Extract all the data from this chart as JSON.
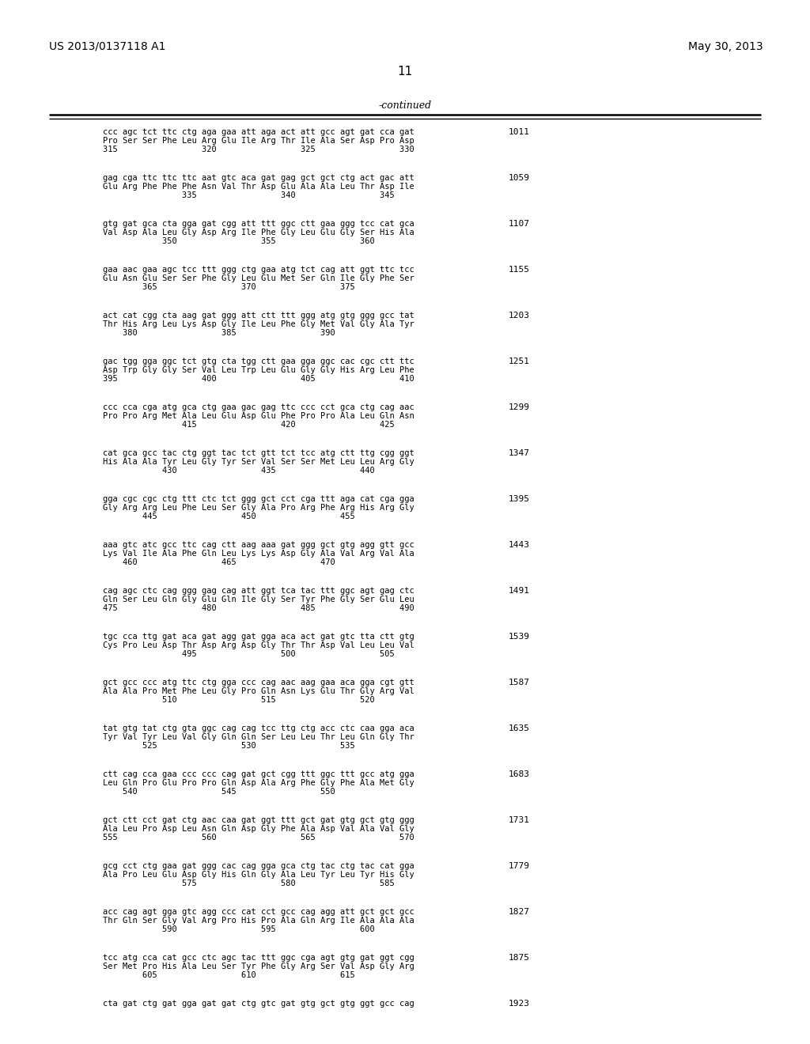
{
  "patent_number": "US 2013/0137118 A1",
  "date": "May 30, 2013",
  "page_number": "11",
  "continued_label": "-continued",
  "background_color": "#ffffff",
  "text_color": "#000000",
  "lines": [
    {
      "dna": "ccc agc tct ttc ctg aga gaa att aga act att gcc agt gat cca gat",
      "aa": "Pro Ser Ser Phe Leu Arg Glu Ile Arg Thr Ile Ala Ser Asp Pro Asp",
      "nums": "315                 320                 325                 330",
      "num_right": "1011"
    },
    {
      "dna": "gag cga ttc ttc ttc aat gtc aca gat gag gct gct ctg act gac att",
      "aa": "Glu Arg Phe Phe Phe Asn Val Thr Asp Glu Ala Ala Leu Thr Asp Ile",
      "nums": "                335                 340                 345",
      "num_right": "1059"
    },
    {
      "dna": "gtg gat gca cta gga gat cgg att ttt ggc ctt gaa ggg tcc cat gca",
      "aa": "Val Asp Ala Leu Gly Asp Arg Ile Phe Gly Leu Glu Gly Ser His Ala",
      "nums": "            350                 355                 360",
      "num_right": "1107"
    },
    {
      "dna": "gaa aac gaa agc tcc ttt ggg ctg gaa atg tct cag att ggt ttc tcc",
      "aa": "Glu Asn Glu Ser Ser Phe Gly Leu Glu Met Ser Gln Ile Gly Phe Ser",
      "nums": "        365                 370                 375",
      "num_right": "1155"
    },
    {
      "dna": "act cat cgg cta aag gat ggg att ctt ttt ggg atg gtg ggg gcc tat",
      "aa": "Thr His Arg Leu Lys Asp Gly Ile Leu Phe Gly Met Val Gly Ala Tyr",
      "nums": "    380                 385                 390",
      "num_right": "1203"
    },
    {
      "dna": "gac tgg gga ggc tct gtg cta tgg ctt gaa gga ggc cac cgc ctt ttc",
      "aa": "Asp Trp Gly Gly Ser Val Leu Trp Leu Glu Gly Gly His Arg Leu Phe",
      "nums": "395                 400                 405                 410",
      "num_right": "1251"
    },
    {
      "dna": "ccc cca cga atg gca ctg gaa gac gag ttc ccc cct gca ctg cag aac",
      "aa": "Pro Pro Arg Met Ala Leu Glu Asp Glu Phe Pro Pro Ala Leu Gln Asn",
      "nums": "                415                 420                 425",
      "num_right": "1299"
    },
    {
      "dna": "cat gca gcc tac ctg ggt tac tct gtt tct tcc atg ctt ttg cgg ggt",
      "aa": "His Ala Ala Tyr Leu Gly Tyr Ser Val Ser Ser Met Leu Leu Arg Gly",
      "nums": "            430                 435                 440",
      "num_right": "1347"
    },
    {
      "dna": "gga cgc cgc ctg ttt ctc tct ggg gct cct cga ttt aga cat cga gga",
      "aa": "Gly Arg Arg Leu Phe Leu Ser Gly Ala Pro Arg Phe Arg His Arg Gly",
      "nums": "        445                 450                 455",
      "num_right": "1395"
    },
    {
      "dna": "aaa gtc atc gcc ttc cag ctt aag aaa gat ggg gct gtg agg gtt gcc",
      "aa": "Lys Val Ile Ala Phe Gln Leu Lys Lys Asp Gly Ala Val Arg Val Ala",
      "nums": "    460                 465                 470",
      "num_right": "1443"
    },
    {
      "dna": "cag agc ctc cag ggg gag cag att ggt tca tac ttt ggc agt gag ctc",
      "aa": "Gln Ser Leu Gln Gly Glu Gln Ile Gly Ser Tyr Phe Gly Ser Glu Leu",
      "nums": "475                 480                 485                 490",
      "num_right": "1491"
    },
    {
      "dna": "tgc cca ttg gat aca gat agg gat gga aca act gat gtc tta ctt gtg",
      "aa": "Cys Pro Leu Asp Thr Asp Arg Asp Gly Thr Thr Asp Val Leu Leu Val",
      "nums": "                495                 500                 505",
      "num_right": "1539"
    },
    {
      "dna": "gct gcc ccc atg ttc ctg gga ccc cag aac aag gaa aca gga cgt gtt",
      "aa": "Ala Ala Pro Met Phe Leu Gly Pro Gln Asn Lys Glu Thr Gly Arg Val",
      "nums": "            510                 515                 520",
      "num_right": "1587"
    },
    {
      "dna": "tat gtg tat ctg gta ggc cag cag tcc ttg ctg acc ctc caa gga aca",
      "aa": "Tyr Val Tyr Leu Val Gly Gln Gln Ser Leu Leu Thr Leu Gln Gly Thr",
      "nums": "        525                 530                 535",
      "num_right": "1635"
    },
    {
      "dna": "ctt cag cca gaa ccc ccc cag gat gct cgg ttt ggc ttt gcc atg gga",
      "aa": "Leu Gln Pro Glu Pro Pro Gln Asp Ala Arg Phe Gly Phe Ala Met Gly",
      "nums": "    540                 545                 550",
      "num_right": "1683"
    },
    {
      "dna": "gct ctt cct gat ctg aac caa gat ggt ttt gct gat gtg gct gtg ggg",
      "aa": "Ala Leu Pro Asp Leu Asn Gln Asp Gly Phe Ala Asp Val Ala Val Gly",
      "nums": "555                 560                 565                 570",
      "num_right": "1731"
    },
    {
      "dna": "gcg cct ctg gaa gat ggg cac cag gga gca ctg tac ctg tac cat gga",
      "aa": "Ala Pro Leu Glu Asp Gly His Gln Gly Ala Leu Tyr Leu Tyr His Gly",
      "nums": "                575                 580                 585",
      "num_right": "1779"
    },
    {
      "dna": "acc cag agt gga gtc agg ccc cat cct gcc cag agg att gct gct gcc",
      "aa": "Thr Gln Ser Gly Val Arg Pro His Pro Ala Gln Arg Ile Ala Ala Ala",
      "nums": "            590                 595                 600",
      "num_right": "1827"
    },
    {
      "dna": "tcc atg cca cat gcc ctc agc tac ttt ggc cga agt gtg gat ggt cgg",
      "aa": "Ser Met Pro His Ala Leu Ser Tyr Phe Gly Arg Ser Val Asp Gly Arg",
      "nums": "        605                 610                 615",
      "num_right": "1875"
    },
    {
      "dna": "cta gat ctg gat gga gat gat ctg gtc gat gtg gct gtg ggt gcc cag",
      "aa": "",
      "nums": "",
      "num_right": "1923"
    }
  ]
}
